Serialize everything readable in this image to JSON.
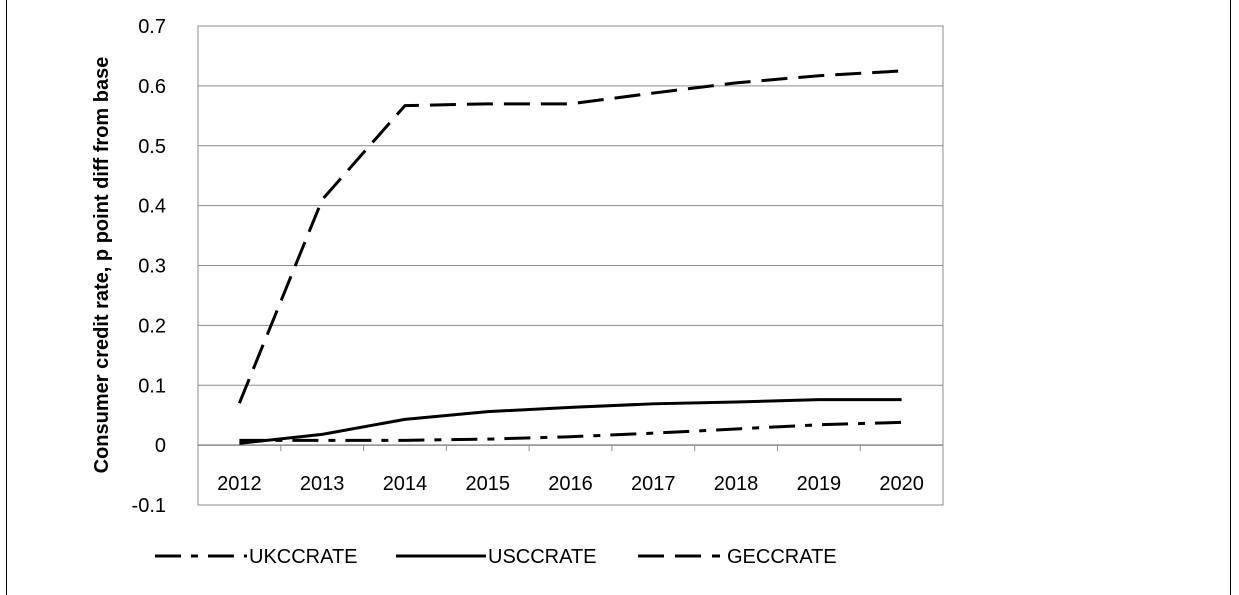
{
  "chart_data": {
    "type": "line",
    "title": "",
    "xlabel": "",
    "ylabel": "Consumer credit rate, p point diff from base",
    "x": [
      "2012",
      "2013",
      "2014",
      "2015",
      "2016",
      "2017",
      "2018",
      "2019",
      "2020"
    ],
    "ylim": [
      -0.1,
      0.7
    ],
    "yticks": [
      "-0.1",
      "0",
      "0.1",
      "0.2",
      "0.3",
      "0.4",
      "0.5",
      "0.6",
      "0.7"
    ],
    "grid": true,
    "legend": "bottom",
    "series": [
      {
        "name": "UKCCRATE",
        "style": "dash-dot",
        "color": "#000000",
        "values": [
          0.008,
          0.008,
          0.008,
          0.01,
          0.014,
          0.02,
          0.027,
          0.034,
          0.038
        ]
      },
      {
        "name": "USCCRATE",
        "style": "solid",
        "color": "#000000",
        "values": [
          0.003,
          0.018,
          0.043,
          0.056,
          0.063,
          0.069,
          0.072,
          0.076,
          0.076
        ]
      },
      {
        "name": "GECCRATE",
        "style": "dashed",
        "color": "#000000",
        "values": [
          0.07,
          0.41,
          0.567,
          0.57,
          0.57,
          0.588,
          0.605,
          0.617,
          0.625
        ]
      }
    ]
  }
}
